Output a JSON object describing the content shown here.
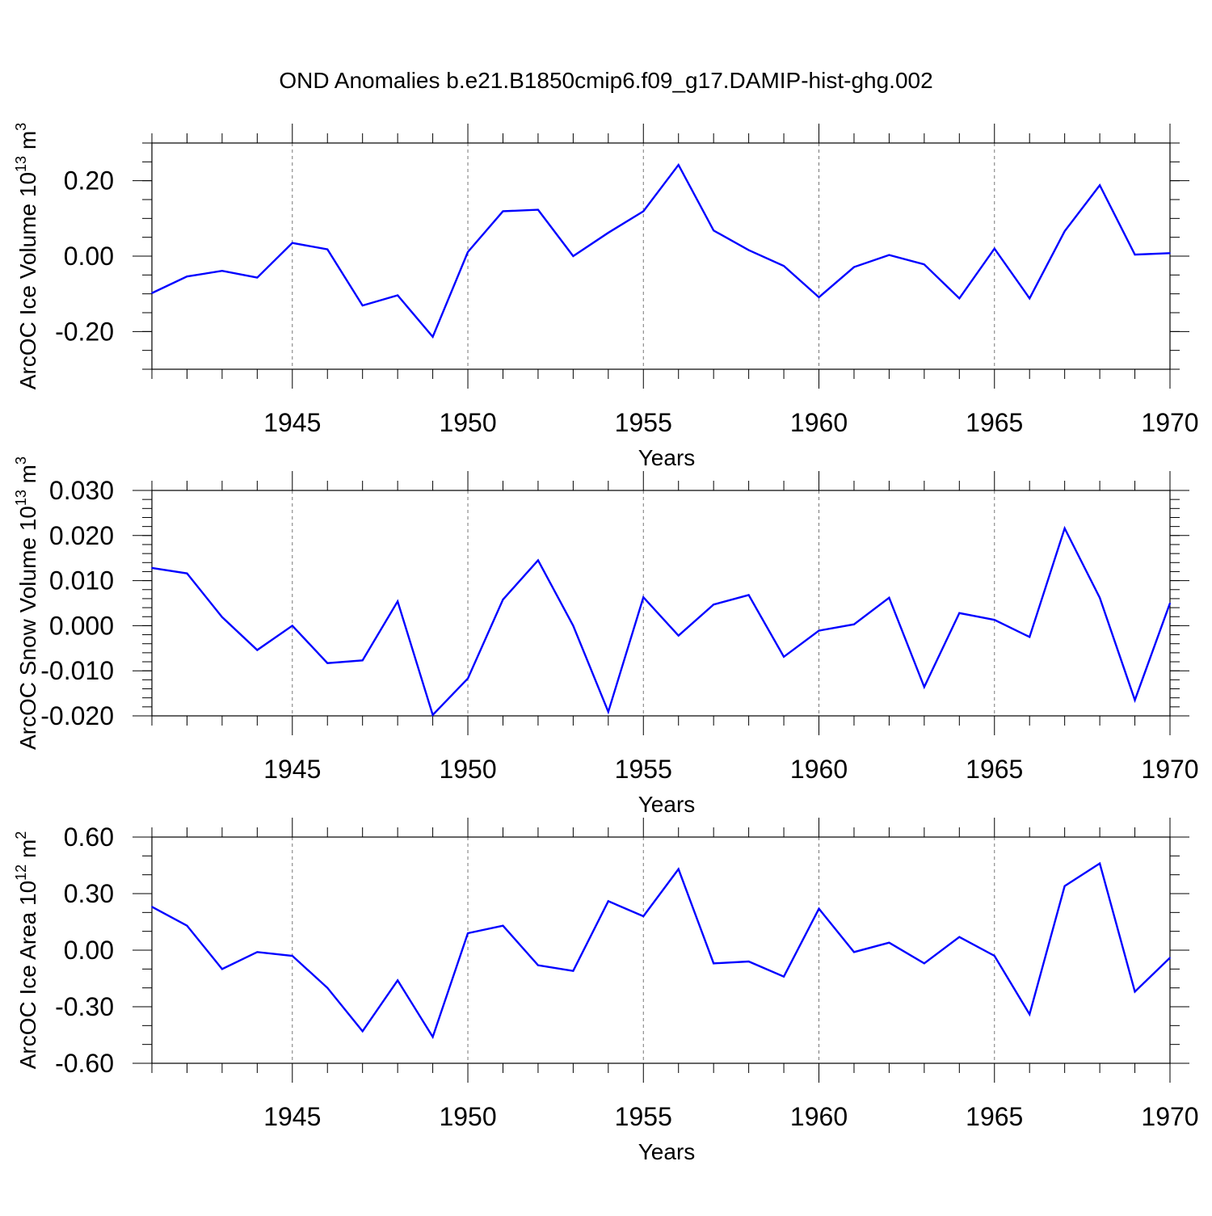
{
  "title": "OND Anomalies b.e21.B1850cmip6.f09_g17.DAMIP-hist-ghg.002",
  "colors": {
    "line": "#0000ff",
    "axis": "#000000",
    "grid": "#777777",
    "background": "#ffffff"
  },
  "chart_data": [
    {
      "type": "line",
      "title": "",
      "xlabel": "Years",
      "ylabel": "ArcOC Ice Volume 10",
      "ylabel_exp": "13",
      "ylabel_unit": " m",
      "ylabel_unit_exp": "3",
      "xlim": [
        1941,
        1970
      ],
      "ylim": [
        -0.3,
        0.3
      ],
      "xticks": [
        1945,
        1950,
        1955,
        1960,
        1965,
        1970
      ],
      "xtick_labels": [
        "1945",
        "1950",
        "1955",
        "1960",
        "1965",
        "1970"
      ],
      "yticks": [
        -0.2,
        0.0,
        0.2
      ],
      "ytick_labels": [
        "-0.20",
        "0.00",
        "0.20"
      ],
      "y_minor_step": 0.05,
      "grid": "vertical-dashed",
      "x": [
        1941,
        1942,
        1943,
        1944,
        1945,
        1946,
        1947,
        1948,
        1949,
        1950,
        1951,
        1952,
        1953,
        1954,
        1955,
        1956,
        1957,
        1958,
        1959,
        1960,
        1961,
        1962,
        1963,
        1964,
        1965,
        1966,
        1967,
        1968,
        1969,
        1970
      ],
      "series": [
        {
          "name": "ArcOC Ice Volume",
          "values": [
            -0.098,
            -0.054,
            -0.039,
            -0.057,
            0.035,
            0.018,
            -0.131,
            -0.104,
            -0.214,
            0.011,
            0.119,
            0.123,
            0.0,
            0.062,
            0.119,
            0.242,
            0.068,
            0.016,
            -0.026,
            -0.109,
            -0.029,
            0.003,
            -0.022,
            -0.112,
            0.02,
            -0.112,
            0.066,
            0.188,
            0.004,
            0.008
          ]
        }
      ]
    },
    {
      "type": "line",
      "title": "",
      "xlabel": "Years",
      "ylabel": "ArcOC Snow Volume 10",
      "ylabel_exp": "13",
      "ylabel_unit": " m",
      "ylabel_unit_exp": "3",
      "xlim": [
        1941,
        1970
      ],
      "ylim": [
        -0.02,
        0.03
      ],
      "xticks": [
        1945,
        1950,
        1955,
        1960,
        1965,
        1970
      ],
      "xtick_labels": [
        "1945",
        "1950",
        "1955",
        "1960",
        "1965",
        "1970"
      ],
      "yticks": [
        -0.02,
        -0.01,
        0.0,
        0.01,
        0.02,
        0.03
      ],
      "ytick_labels": [
        "-0.020",
        "-0.010",
        "0.000",
        "0.010",
        "0.020",
        "0.030"
      ],
      "y_minor_step": 0.002,
      "grid": "vertical-dashed",
      "x": [
        1941,
        1942,
        1943,
        1944,
        1945,
        1946,
        1947,
        1948,
        1949,
        1950,
        1951,
        1952,
        1953,
        1954,
        1955,
        1956,
        1957,
        1958,
        1959,
        1960,
        1961,
        1962,
        1963,
        1964,
        1965,
        1966,
        1967,
        1968,
        1969,
        1970
      ],
      "series": [
        {
          "name": "ArcOC Snow Volume",
          "values": [
            0.0128,
            0.0116,
            0.0019,
            -0.0054,
            0.0,
            -0.0083,
            -0.0077,
            0.0054,
            -0.0198,
            -0.0117,
            0.0058,
            0.0145,
            0.0,
            -0.0191,
            0.0063,
            -0.0022,
            0.0047,
            0.0068,
            -0.0069,
            -0.0011,
            0.0003,
            0.0062,
            -0.0136,
            0.0028,
            0.0013,
            -0.0025,
            0.0216,
            0.0062,
            -0.0165,
            0.005
          ]
        }
      ]
    },
    {
      "type": "line",
      "title": "",
      "xlabel": "Years",
      "ylabel": "ArcOC Ice Area 10",
      "ylabel_exp": "12",
      "ylabel_unit": " m",
      "ylabel_unit_exp": "2",
      "xlim": [
        1941,
        1970
      ],
      "ylim": [
        -0.6,
        0.6
      ],
      "xticks": [
        1945,
        1950,
        1955,
        1960,
        1965,
        1970
      ],
      "xtick_labels": [
        "1945",
        "1950",
        "1955",
        "1960",
        "1965",
        "1970"
      ],
      "yticks": [
        -0.6,
        -0.3,
        0.0,
        0.3,
        0.6
      ],
      "ytick_labels": [
        "-0.60",
        "-0.30",
        "0.00",
        "0.30",
        "0.60"
      ],
      "y_minor_step": 0.1,
      "grid": "vertical-dashed",
      "x": [
        1941,
        1942,
        1943,
        1944,
        1945,
        1946,
        1947,
        1948,
        1949,
        1950,
        1951,
        1952,
        1953,
        1954,
        1955,
        1956,
        1957,
        1958,
        1959,
        1960,
        1961,
        1962,
        1963,
        1964,
        1965,
        1966,
        1967,
        1968,
        1969,
        1970
      ],
      "series": [
        {
          "name": "ArcOC Ice Area",
          "values": [
            0.23,
            0.13,
            -0.1,
            -0.01,
            -0.03,
            -0.2,
            -0.43,
            -0.16,
            -0.46,
            0.09,
            0.13,
            -0.08,
            -0.11,
            0.26,
            0.18,
            0.43,
            -0.07,
            -0.06,
            -0.14,
            0.22,
            -0.01,
            0.04,
            -0.07,
            0.07,
            -0.03,
            -0.34,
            0.34,
            0.46,
            -0.22,
            -0.04
          ]
        }
      ]
    }
  ]
}
